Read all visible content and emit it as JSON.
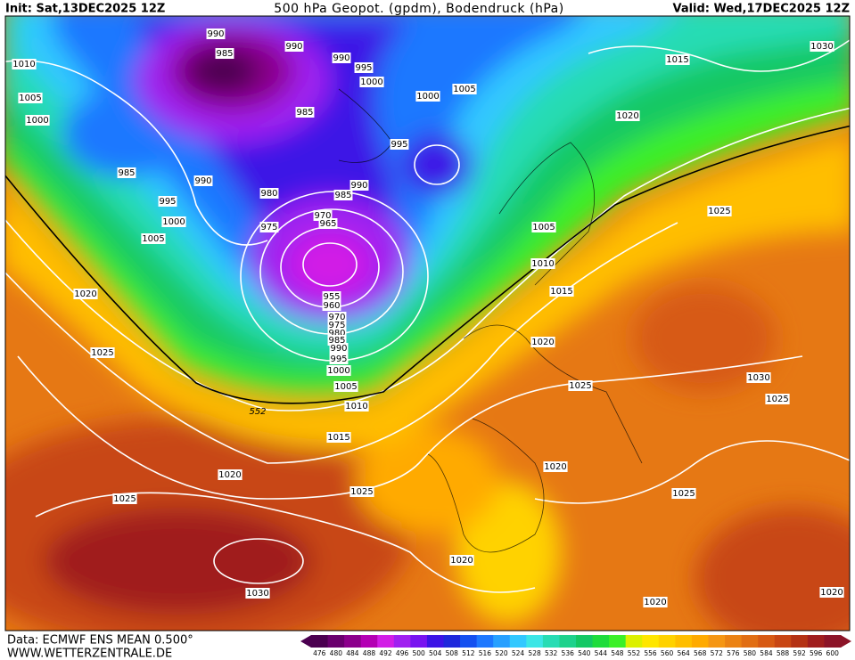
{
  "header": {
    "init": "Init: Sat,13DEC2025 12Z",
    "title": "500 hPa Geopot. (gpdm), Bodendruck (hPa)",
    "valid": "Valid: Wed,17DEC2025 12Z"
  },
  "footer": {
    "source": "Data: ECMWF ENS MEAN 0.500°",
    "website": "WWW.WETTERZENTRALE.DE"
  },
  "contour_label": "552",
  "isobar_labels": [
    "990",
    "990",
    "985",
    "990",
    "1010",
    "995",
    "1000",
    "1005",
    "1000",
    "1005",
    "1015",
    "1030",
    "1000",
    "985",
    "1020",
    "995",
    "985",
    "990",
    "990",
    "980",
    "985",
    "995",
    "970",
    "1000",
    "965",
    "975",
    "1005",
    "1005",
    "1025",
    "1010",
    "1015",
    "1020",
    "955",
    "960",
    "970",
    "975",
    "980",
    "985",
    "990",
    "995",
    "1000",
    "1005",
    "1010",
    "1020",
    "1025",
    "1030",
    "1025",
    "1025",
    "1015",
    "1020",
    "1020",
    "1025",
    "1025",
    "1025",
    "1020",
    "1030",
    "1020",
    "1020"
  ],
  "colorbar": {
    "values": [
      476,
      480,
      484,
      488,
      492,
      496,
      500,
      504,
      508,
      512,
      516,
      520,
      524,
      528,
      532,
      536,
      540,
      544,
      548,
      552,
      556,
      560,
      564,
      568,
      572,
      576,
      580,
      584,
      588,
      592,
      596,
      600
    ],
    "colors": [
      "#4b0050",
      "#6a006e",
      "#8c008c",
      "#b400b4",
      "#d21ee6",
      "#a020f0",
      "#7814f0",
      "#3c14e6",
      "#1e28dc",
      "#1450f0",
      "#1e78ff",
      "#28a0ff",
      "#32c8ff",
      "#3ce6e6",
      "#28dcb4",
      "#1ed28c",
      "#14c864",
      "#1edc3c",
      "#3cf028",
      "#dcf000",
      "#ffe600",
      "#ffd200",
      "#ffbe00",
      "#ffaa00",
      "#f59614",
      "#eb8214",
      "#e16e14",
      "#d75a14",
      "#c84614",
      "#b43214",
      "#a01e1e",
      "#8c1428"
    ]
  }
}
